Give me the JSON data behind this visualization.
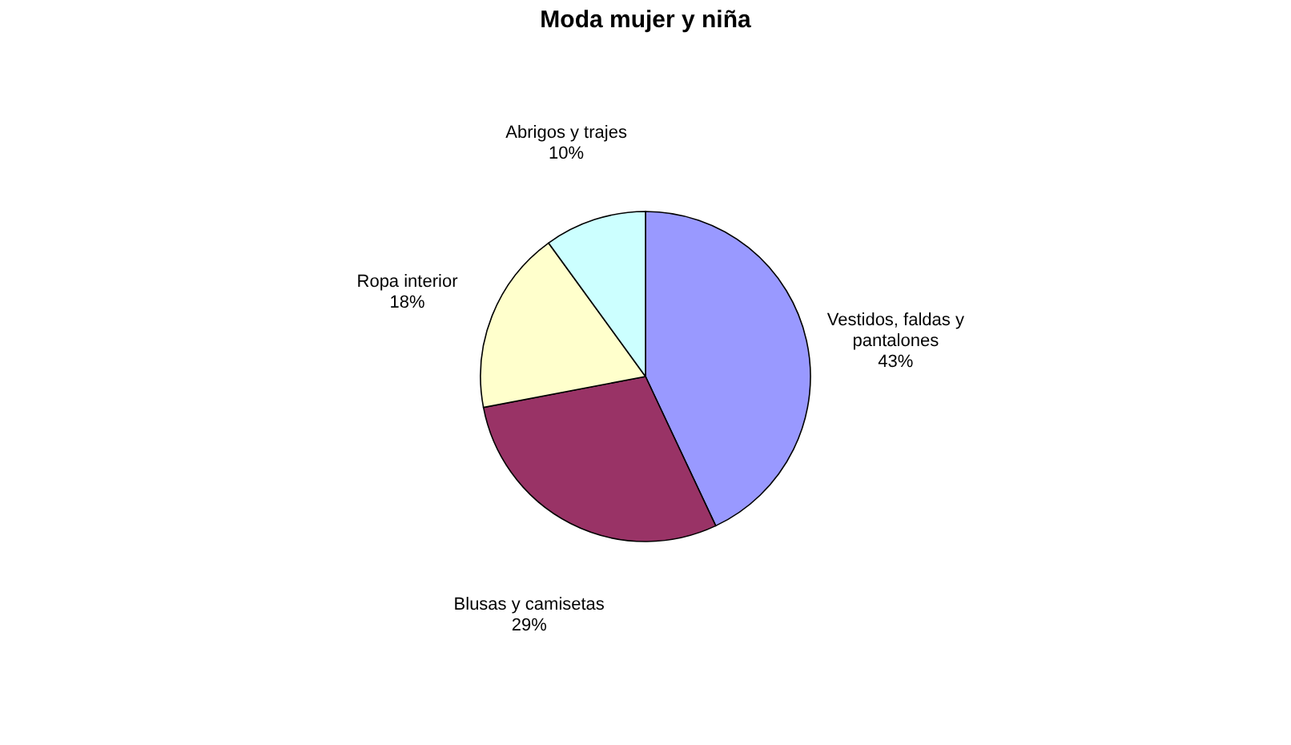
{
  "chart_data": {
    "type": "pie",
    "title": "Moda mujer y niña",
    "categories": [
      "Vestidos, faldas y pantalones",
      "Blusas y camisetas",
      "Ropa interior",
      "Abrigos y trajes"
    ],
    "values": [
      43,
      29,
      18,
      10
    ],
    "value_labels": [
      "43%",
      "29%",
      "18%",
      "10%"
    ],
    "colors": [
      "#9999ff",
      "#993366",
      "#ffffcc",
      "#ccffff"
    ],
    "legend": false
  }
}
